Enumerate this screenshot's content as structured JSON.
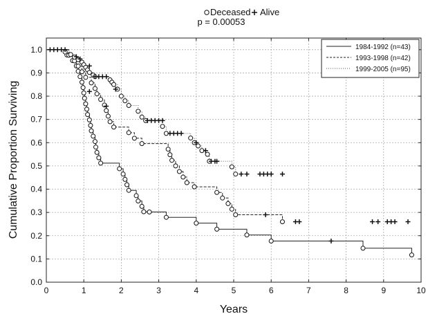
{
  "chart_data": {
    "type": "line",
    "subtype": "kaplan-meier survival curves",
    "header": {
      "deceased_label": "Deceased",
      "alive_label": "Alive",
      "p_value_text": "p = 0.00053"
    },
    "xlabel": "Years",
    "ylabel": "Cumulative Proportion Surviving",
    "xlim": [
      0,
      10
    ],
    "ylim": [
      0,
      1.05
    ],
    "x_ticks": [
      "0",
      "1",
      "2",
      "3",
      "4",
      "5",
      "6",
      "7",
      "8",
      "9",
      "10"
    ],
    "y_ticks": [
      "0.0",
      "0.1",
      "0.2",
      "0.3",
      "0.4",
      "0.5",
      "0.6",
      "0.7",
      "0.8",
      "0.9",
      "1.0"
    ],
    "grid": true,
    "legend_position": "top-right",
    "marker_legend": {
      "deceased": "open circle",
      "alive": "plus (censored)"
    },
    "series": [
      {
        "name": "1984-1992 (n=43)",
        "line_style": "solid",
        "color": "#222222",
        "steps": [
          [
            0,
            1.0
          ],
          [
            0.55,
            0.977
          ],
          [
            0.7,
            0.953
          ],
          [
            0.8,
            0.93
          ],
          [
            0.85,
            0.907
          ],
          [
            0.9,
            0.884
          ],
          [
            0.95,
            0.86
          ],
          [
            0.98,
            0.837
          ],
          [
            1.0,
            0.814
          ],
          [
            1.02,
            0.791
          ],
          [
            1.05,
            0.767
          ],
          [
            1.08,
            0.744
          ],
          [
            1.1,
            0.721
          ],
          [
            1.15,
            0.698
          ],
          [
            1.18,
            0.674
          ],
          [
            1.2,
            0.651
          ],
          [
            1.25,
            0.628
          ],
          [
            1.3,
            0.605
          ],
          [
            1.32,
            0.581
          ],
          [
            1.35,
            0.558
          ],
          [
            1.4,
            0.535
          ],
          [
            1.45,
            0.512
          ],
          [
            1.6,
            0.512
          ],
          [
            1.95,
            0.488
          ],
          [
            2.05,
            0.465
          ],
          [
            2.1,
            0.442
          ],
          [
            2.15,
            0.419
          ],
          [
            2.2,
            0.395
          ],
          [
            2.4,
            0.372
          ],
          [
            2.45,
            0.349
          ],
          [
            2.55,
            0.326
          ],
          [
            2.6,
            0.303
          ],
          [
            2.75,
            0.302
          ],
          [
            3.2,
            0.279
          ],
          [
            4.0,
            0.254
          ],
          [
            4.55,
            0.228
          ],
          [
            5.35,
            0.203
          ],
          [
            6.0,
            0.177
          ],
          [
            8.45,
            0.146
          ],
          [
            9.75,
            0.117
          ]
        ],
        "deceased_points": [
          [
            0.55,
            0.977
          ],
          [
            0.7,
            0.953
          ],
          [
            0.8,
            0.93
          ],
          [
            0.85,
            0.907
          ],
          [
            0.9,
            0.884
          ],
          [
            0.95,
            0.86
          ],
          [
            0.98,
            0.837
          ],
          [
            1.0,
            0.814
          ],
          [
            1.02,
            0.791
          ],
          [
            1.05,
            0.767
          ],
          [
            1.08,
            0.744
          ],
          [
            1.1,
            0.721
          ],
          [
            1.15,
            0.698
          ],
          [
            1.18,
            0.674
          ],
          [
            1.2,
            0.651
          ],
          [
            1.25,
            0.628
          ],
          [
            1.3,
            0.605
          ],
          [
            1.32,
            0.581
          ],
          [
            1.35,
            0.558
          ],
          [
            1.4,
            0.535
          ],
          [
            1.45,
            0.512
          ],
          [
            1.95,
            0.488
          ],
          [
            2.05,
            0.465
          ],
          [
            2.1,
            0.442
          ],
          [
            2.15,
            0.419
          ],
          [
            2.2,
            0.395
          ],
          [
            2.4,
            0.372
          ],
          [
            2.45,
            0.349
          ],
          [
            2.55,
            0.326
          ],
          [
            2.6,
            0.303
          ],
          [
            2.75,
            0.302
          ],
          [
            3.2,
            0.279
          ],
          [
            4.0,
            0.254
          ],
          [
            4.55,
            0.228
          ],
          [
            5.35,
            0.203
          ],
          [
            6.0,
            0.177
          ],
          [
            8.45,
            0.146
          ],
          [
            9.75,
            0.117
          ]
        ],
        "censored_points": [
          [
            7.6,
            0.177
          ]
        ]
      },
      {
        "name": "1993-1998 (n=42)",
        "line_style": "dashed",
        "color": "#222222",
        "steps": [
          [
            0,
            1.0
          ],
          [
            0.6,
            0.976
          ],
          [
            0.75,
            0.952
          ],
          [
            0.85,
            0.929
          ],
          [
            0.95,
            0.905
          ],
          [
            1.05,
            0.881
          ],
          [
            1.2,
            0.857
          ],
          [
            1.3,
            0.833
          ],
          [
            1.35,
            0.81
          ],
          [
            1.45,
            0.786
          ],
          [
            1.55,
            0.762
          ],
          [
            1.6,
            0.738
          ],
          [
            1.65,
            0.714
          ],
          [
            1.7,
            0.69
          ],
          [
            1.8,
            0.667
          ],
          [
            2.2,
            0.643
          ],
          [
            2.35,
            0.619
          ],
          [
            2.55,
            0.596
          ],
          [
            3.25,
            0.572
          ],
          [
            3.3,
            0.548
          ],
          [
            3.35,
            0.524
          ],
          [
            3.45,
            0.5
          ],
          [
            3.55,
            0.476
          ],
          [
            3.65,
            0.452
          ],
          [
            3.75,
            0.428
          ],
          [
            3.95,
            0.41
          ],
          [
            4.55,
            0.386
          ],
          [
            4.7,
            0.362
          ],
          [
            4.85,
            0.338
          ],
          [
            4.95,
            0.314
          ],
          [
            5.05,
            0.29
          ],
          [
            6.3,
            0.26
          ]
        ],
        "deceased_points": [
          [
            0.6,
            0.976
          ],
          [
            0.75,
            0.952
          ],
          [
            0.85,
            0.929
          ],
          [
            0.95,
            0.905
          ],
          [
            1.05,
            0.881
          ],
          [
            1.2,
            0.857
          ],
          [
            1.3,
            0.833
          ],
          [
            1.35,
            0.81
          ],
          [
            1.45,
            0.786
          ],
          [
            1.55,
            0.762
          ],
          [
            1.6,
            0.738
          ],
          [
            1.65,
            0.714
          ],
          [
            1.7,
            0.69
          ],
          [
            1.8,
            0.667
          ],
          [
            2.2,
            0.643
          ],
          [
            2.35,
            0.619
          ],
          [
            2.55,
            0.596
          ],
          [
            3.25,
            0.572
          ],
          [
            3.3,
            0.548
          ],
          [
            3.35,
            0.524
          ],
          [
            3.45,
            0.5
          ],
          [
            3.55,
            0.476
          ],
          [
            3.65,
            0.452
          ],
          [
            3.75,
            0.428
          ],
          [
            3.95,
            0.41
          ],
          [
            4.55,
            0.386
          ],
          [
            4.7,
            0.362
          ],
          [
            4.85,
            0.338
          ],
          [
            4.95,
            0.314
          ],
          [
            5.05,
            0.29
          ],
          [
            6.3,
            0.26
          ]
        ],
        "censored_points": [
          [
            1.15,
            0.82
          ],
          [
            1.6,
            0.757
          ],
          [
            5.85,
            0.29
          ],
          [
            6.65,
            0.26
          ],
          [
            6.75,
            0.26
          ],
          [
            8.7,
            0.26
          ],
          [
            8.85,
            0.26
          ],
          [
            9.1,
            0.26
          ],
          [
            9.2,
            0.26
          ],
          [
            9.3,
            0.26
          ],
          [
            9.65,
            0.26
          ]
        ]
      },
      {
        "name": "1999-2005 (n=95)",
        "line_style": "dotted",
        "color": "#555555",
        "steps": [
          [
            0,
            1.0
          ],
          [
            0.5,
            0.99
          ],
          [
            0.65,
            0.979
          ],
          [
            0.75,
            0.968
          ],
          [
            0.85,
            0.957
          ],
          [
            0.95,
            0.946
          ],
          [
            1.0,
            0.935
          ],
          [
            1.05,
            0.924
          ],
          [
            1.1,
            0.913
          ],
          [
            1.15,
            0.902
          ],
          [
            1.25,
            0.891
          ],
          [
            1.3,
            0.884
          ],
          [
            1.7,
            0.87
          ],
          [
            1.75,
            0.86
          ],
          [
            1.8,
            0.85
          ],
          [
            1.9,
            0.83
          ],
          [
            2.0,
            0.8
          ],
          [
            2.1,
            0.78
          ],
          [
            2.2,
            0.76
          ],
          [
            2.45,
            0.735
          ],
          [
            2.55,
            0.71
          ],
          [
            2.65,
            0.695
          ],
          [
            3.1,
            0.67
          ],
          [
            3.2,
            0.64
          ],
          [
            3.85,
            0.62
          ],
          [
            3.95,
            0.6
          ],
          [
            4.05,
            0.586
          ],
          [
            4.15,
            0.566
          ],
          [
            4.3,
            0.55
          ],
          [
            4.35,
            0.52
          ],
          [
            4.95,
            0.496
          ],
          [
            5.05,
            0.465
          ]
        ],
        "deceased_points": [
          [
            0.5,
            0.99
          ],
          [
            0.65,
            0.979
          ],
          [
            0.75,
            0.968
          ],
          [
            0.85,
            0.957
          ],
          [
            0.95,
            0.946
          ],
          [
            1.0,
            0.935
          ],
          [
            1.05,
            0.924
          ],
          [
            1.1,
            0.913
          ],
          [
            1.15,
            0.902
          ],
          [
            1.25,
            0.891
          ],
          [
            1.3,
            0.884
          ],
          [
            1.7,
            0.87
          ],
          [
            1.75,
            0.86
          ],
          [
            1.8,
            0.85
          ],
          [
            1.9,
            0.83
          ],
          [
            2.0,
            0.8
          ],
          [
            2.1,
            0.78
          ],
          [
            2.2,
            0.76
          ],
          [
            2.45,
            0.735
          ],
          [
            2.55,
            0.71
          ],
          [
            2.65,
            0.695
          ],
          [
            3.1,
            0.67
          ],
          [
            3.2,
            0.64
          ],
          [
            3.85,
            0.62
          ],
          [
            3.95,
            0.6
          ],
          [
            4.05,
            0.586
          ],
          [
            4.15,
            0.566
          ],
          [
            4.3,
            0.55
          ],
          [
            4.35,
            0.52
          ],
          [
            4.95,
            0.496
          ],
          [
            5.05,
            0.465
          ]
        ],
        "censored_points": [
          [
            0.1,
            1.0
          ],
          [
            0.2,
            1.0
          ],
          [
            0.3,
            1.0
          ],
          [
            0.4,
            1.0
          ],
          [
            0.5,
            1.0
          ],
          [
            0.8,
            0.97
          ],
          [
            0.9,
            0.96
          ],
          [
            1.15,
            0.93
          ],
          [
            1.3,
            0.884
          ],
          [
            1.4,
            0.884
          ],
          [
            1.5,
            0.884
          ],
          [
            1.6,
            0.884
          ],
          [
            1.85,
            0.83
          ],
          [
            2.7,
            0.695
          ],
          [
            2.8,
            0.695
          ],
          [
            2.9,
            0.695
          ],
          [
            3.0,
            0.695
          ],
          [
            3.1,
            0.695
          ],
          [
            3.3,
            0.64
          ],
          [
            3.4,
            0.64
          ],
          [
            3.5,
            0.64
          ],
          [
            3.6,
            0.64
          ],
          [
            4.0,
            0.6
          ],
          [
            4.25,
            0.566
          ],
          [
            4.4,
            0.52
          ],
          [
            4.5,
            0.52
          ],
          [
            4.55,
            0.52
          ],
          [
            5.2,
            0.465
          ],
          [
            5.35,
            0.465
          ],
          [
            5.7,
            0.465
          ],
          [
            5.8,
            0.465
          ],
          [
            5.9,
            0.465
          ],
          [
            6.0,
            0.465
          ],
          [
            6.3,
            0.465
          ]
        ]
      }
    ]
  }
}
